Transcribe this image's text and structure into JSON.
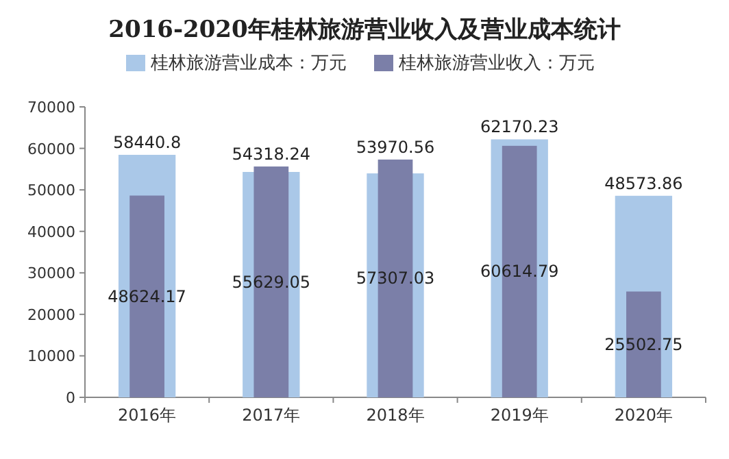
{
  "chart_data": {
    "type": "bar",
    "title": "2016-2020年桂林旅游营业收入及营业成本统计",
    "categories": [
      "2016年",
      "2017年",
      "2018年",
      "2019年",
      "2020年"
    ],
    "series": [
      {
        "name": "桂林旅游营业成本：万元",
        "color": "#aac8e8",
        "values": [
          58440.8,
          54318.24,
          53970.56,
          62170.23,
          48573.86
        ]
      },
      {
        "name": "桂林旅游营业收入：万元",
        "color": "#7b7fa8",
        "values": [
          48624.17,
          55629.05,
          57307.03,
          60614.79,
          25502.75
        ]
      }
    ],
    "ylim": [
      0,
      70000
    ],
    "yticks": [
      0,
      10000,
      20000,
      30000,
      40000,
      50000,
      60000,
      70000
    ],
    "data_labels": true,
    "legend": "top",
    "grid": false
  }
}
